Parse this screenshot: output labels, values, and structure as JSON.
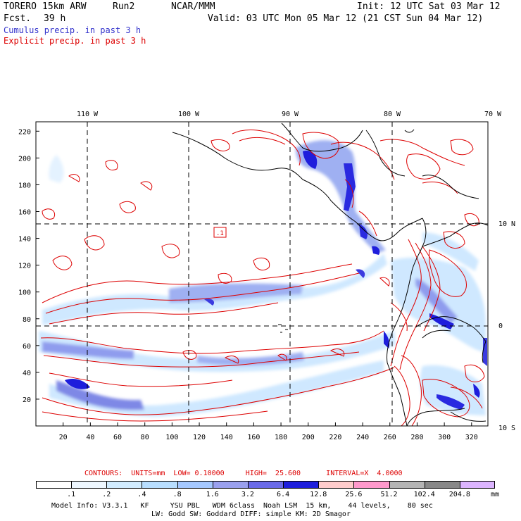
{
  "header": {
    "model": "TORERO",
    "resolution": "15km ARW",
    "run": "Run2",
    "org": "NCAR/MMM",
    "init": "Init: 12 UTC Sat 03 Mar 12",
    "fcst_label": "Fcst.",
    "fcst_value": "39 h",
    "valid": "Valid: 03 UTC Mon 05 Mar 12 (21 CST Sun 04 Mar 12)"
  },
  "legend": {
    "cumulus": "Cumulus precip. in past 3 h",
    "explicit": "Explicit precip. in past 3 h",
    "cumulus_color": "#3333cc",
    "explicit_color": "#dd0000"
  },
  "map": {
    "lon_labels": [
      "110 W",
      "100 W",
      "90 W",
      "80 W",
      "70 W"
    ],
    "lat_labels": [
      "10 N",
      "0",
      "10 S"
    ],
    "y_ticks": [
      "220",
      "200",
      "180",
      "160",
      "140",
      "120",
      "100",
      "80",
      "60",
      "40",
      "20"
    ],
    "x_ticks": [
      "20",
      "40",
      "60",
      "80",
      "100",
      "120",
      "140",
      "160",
      "180",
      "200",
      "220",
      "240",
      "260",
      "280",
      "300",
      "320"
    ],
    "contour_label": ".1"
  },
  "contours_info": {
    "text": "CONTOURS:  UNITS=mm  LOW= 0.10000     HIGH=  25.600      INTERVAL=X  4.0000"
  },
  "colorbar": {
    "labels": [
      ".1",
      ".2",
      ".4",
      ".8",
      "1.6",
      "3.2",
      "6.4",
      "12.8",
      "25.6",
      "51.2",
      "102.4",
      "204.8"
    ],
    "colors": [
      "#ffffff",
      "#eef7ff",
      "#d2ecff",
      "#b8deff",
      "#a5c8ff",
      "#9aa0ee",
      "#6a6ae8",
      "#1e1edc",
      "#ffcccc",
      "#ff99cc",
      "#b4b4b4",
      "#888888",
      "#dcb4ff"
    ],
    "units": "mm"
  },
  "model_info": {
    "line1": "Model Info: V3.3.1   KF     YSU PBL   WDM 6class  Noah LSM  15 km,    44 levels,    80 sec",
    "line2": "LW: Godd SW: Goddard DIFF: simple KM: 2D Smagor"
  }
}
